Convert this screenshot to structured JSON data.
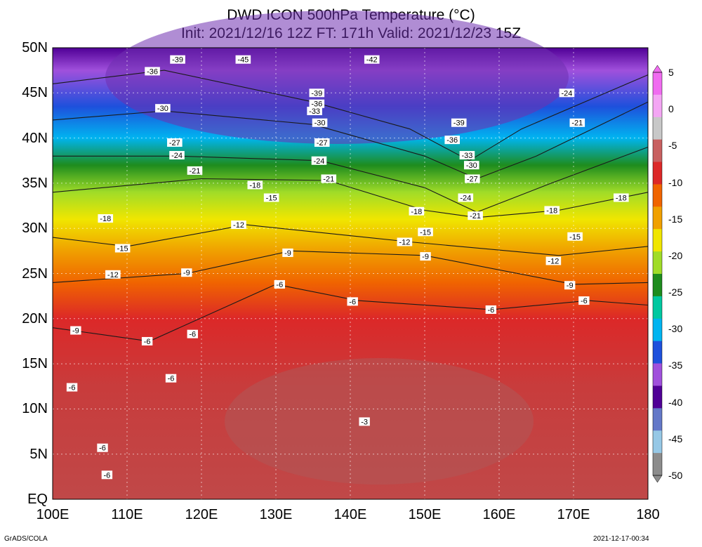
{
  "title_line1": "DWD ICON 500hPa Temperature (°C)",
  "title_line2": "Init: 2021/12/16 12Z  FT: 171h  Valid: 2021/12/23 15Z",
  "lat_labels": [
    "50N",
    "45N",
    "40N",
    "35N",
    "30N",
    "25N",
    "20N",
    "15N",
    "10N",
    "5N",
    "EQ"
  ],
  "lon_labels": [
    "100E",
    "110E",
    "120E",
    "130E",
    "140E",
    "150E",
    "160E",
    "170E",
    "180"
  ],
  "colorbar": {
    "labels": [
      "5",
      "0",
      "-5",
      "-10",
      "-15",
      "-20",
      "-25",
      "-30",
      "-35",
      "-40",
      "-45",
      "-50"
    ],
    "colors": [
      "#f06cf0",
      "#f4a6f4",
      "#c8c8c8",
      "#c86060",
      "#dc2828",
      "#f06400",
      "#f0a000",
      "#f0e600",
      "#a0dc28",
      "#1e8c1e",
      "#00c8a0",
      "#00b4f0",
      "#1e50dc",
      "#a050dc",
      "#500096",
      "#6478c8",
      "#96c8e6",
      "#8c8c8c"
    ]
  },
  "contour_labels": [
    {
      "v": "-39",
      "lon": 116.8,
      "lat": 48.7
    },
    {
      "v": "-45",
      "lon": 125.6,
      "lat": 48.7
    },
    {
      "v": "-42",
      "lon": 142.9,
      "lat": 48.7
    },
    {
      "v": "-36",
      "lon": 113.4,
      "lat": 47.4
    },
    {
      "v": "-39",
      "lon": 135.5,
      "lat": 45.0
    },
    {
      "v": "-36",
      "lon": 135.5,
      "lat": 43.8
    },
    {
      "v": "-33",
      "lon": 135.2,
      "lat": 43.0
    },
    {
      "v": "-30",
      "lon": 114.8,
      "lat": 43.3
    },
    {
      "v": "-30",
      "lon": 135.9,
      "lat": 41.7
    },
    {
      "v": "-39",
      "lon": 154.6,
      "lat": 41.7
    },
    {
      "v": "-36",
      "lon": 153.7,
      "lat": 39.8
    },
    {
      "v": "-33",
      "lon": 155.7,
      "lat": 38.1
    },
    {
      "v": "-30",
      "lon": 156.3,
      "lat": 37.0
    },
    {
      "v": "-27",
      "lon": 116.4,
      "lat": 39.5
    },
    {
      "v": "-27",
      "lon": 136.2,
      "lat": 39.5
    },
    {
      "v": "-24",
      "lon": 116.7,
      "lat": 38.1
    },
    {
      "v": "-24",
      "lon": 135.8,
      "lat": 37.5
    },
    {
      "v": "-21",
      "lon": 119.1,
      "lat": 36.4
    },
    {
      "v": "-21",
      "lon": 137.1,
      "lat": 35.5
    },
    {
      "v": "-27",
      "lon": 156.4,
      "lat": 35.5
    },
    {
      "v": "-18",
      "lon": 127.2,
      "lat": 34.8
    },
    {
      "v": "-15",
      "lon": 129.4,
      "lat": 33.4
    },
    {
      "v": "-24",
      "lon": 155.5,
      "lat": 33.4
    },
    {
      "v": "-18",
      "lon": 148.9,
      "lat": 31.9
    },
    {
      "v": "-21",
      "lon": 156.8,
      "lat": 31.4
    },
    {
      "v": "-18",
      "lon": 107.1,
      "lat": 31.1
    },
    {
      "v": "-12",
      "lon": 125.0,
      "lat": 30.4
    },
    {
      "v": "-15",
      "lon": 150.1,
      "lat": 29.6
    },
    {
      "v": "-12",
      "lon": 147.3,
      "lat": 28.5
    },
    {
      "v": "-15",
      "lon": 109.4,
      "lat": 27.8
    },
    {
      "v": "-9",
      "lon": 131.6,
      "lat": 27.3
    },
    {
      "v": "-9",
      "lon": 150.1,
      "lat": 26.9
    },
    {
      "v": "-12",
      "lon": 108.1,
      "lat": 24.9
    },
    {
      "v": "-9",
      "lon": 118.0,
      "lat": 25.1
    },
    {
      "v": "-6",
      "lon": 130.5,
      "lat": 23.8
    },
    {
      "v": "-6",
      "lon": 140.3,
      "lat": 21.9
    },
    {
      "v": "-6",
      "lon": 158.9,
      "lat": 21.0
    },
    {
      "v": "-9",
      "lon": 103.1,
      "lat": 18.7
    },
    {
      "v": "-6",
      "lon": 112.7,
      "lat": 17.5
    },
    {
      "v": "-6",
      "lon": 118.8,
      "lat": 18.3
    },
    {
      "v": "-6",
      "lon": 115.9,
      "lat": 13.4
    },
    {
      "v": "-6",
      "lon": 102.6,
      "lat": 12.4
    },
    {
      "v": "-3",
      "lon": 141.9,
      "lat": 8.6
    },
    {
      "v": "-6",
      "lon": 106.7,
      "lat": 5.7
    },
    {
      "v": "-6",
      "lon": 107.3,
      "lat": 2.7
    },
    {
      "v": "-24",
      "lon": 169.1,
      "lat": 45.0
    },
    {
      "v": "-21",
      "lon": 170.5,
      "lat": 41.7
    },
    {
      "v": "-18",
      "lon": 176.4,
      "lat": 33.4
    },
    {
      "v": "-18",
      "lon": 167.1,
      "lat": 32.0
    },
    {
      "v": "-15",
      "lon": 170.2,
      "lat": 29.1
    },
    {
      "v": "-12",
      "lon": 167.3,
      "lat": 26.4
    },
    {
      "v": "-9",
      "lon": 169.5,
      "lat": 23.7
    },
    {
      "v": "-6",
      "lon": 171.4,
      "lat": 22.0
    }
  ],
  "footer_left": "GrADS/COLA",
  "footer_right": "2021-12-17-00:34"
}
